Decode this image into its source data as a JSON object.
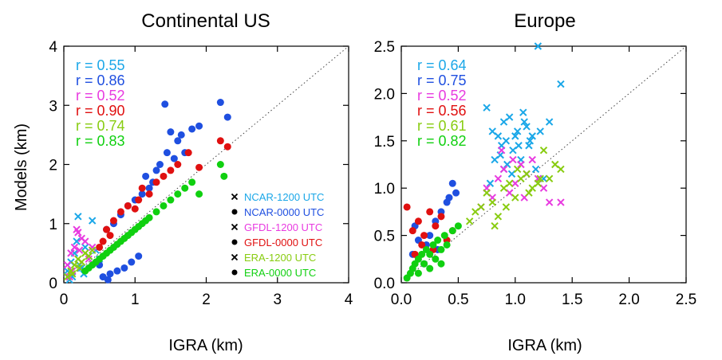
{
  "chart_data": [
    {
      "type": "scatter",
      "title": "Continental US",
      "xlabel": "IGRA (km)",
      "ylabel": "Models (km)",
      "xlim": [
        0,
        4
      ],
      "ylim": [
        0,
        4
      ],
      "xticks": [
        "0",
        "1",
        "2",
        "3",
        "4"
      ],
      "yticks": [
        "0",
        "1",
        "2",
        "3",
        "4"
      ],
      "one_to_one_line": true,
      "legend_position": "bottom-right",
      "correlations": [
        {
          "text": "r = 0.55",
          "color": "#1aa7e8"
        },
        {
          "text": "r = 0.86",
          "color": "#1f4fe0"
        },
        {
          "text": "r = 0.52",
          "color": "#e83ae0"
        },
        {
          "text": "r = 0.90",
          "color": "#e01010"
        },
        {
          "text": "r = 0.74",
          "color": "#88cc10"
        },
        {
          "text": "r = 0.83",
          "color": "#10d010"
        }
      ],
      "legend": [
        {
          "marker": "x",
          "label": "NCAR-1200 UTC",
          "color": "#1aa7e8"
        },
        {
          "marker": "dot",
          "label": "NCAR-0000 UTC",
          "color": "#1f4fe0"
        },
        {
          "marker": "x",
          "label": "GFDL-1200 UTC",
          "color": "#e83ae0"
        },
        {
          "marker": "dot",
          "label": "GFDL-0000 UTC",
          "color": "#e01010"
        },
        {
          "marker": "x",
          "label": "ERA-1200 UTC",
          "color": "#88cc10"
        },
        {
          "marker": "dot",
          "label": "ERA-0000 UTC",
          "color": "#10d010"
        }
      ],
      "series": [
        {
          "name": "NCAR-1200 UTC",
          "marker": "x",
          "color": "#1aa7e8",
          "x": [
            0.05,
            0.1,
            0.15,
            0.2,
            0.25,
            0.3,
            0.18,
            0.12,
            0.22,
            0.35,
            0.4,
            0.45,
            0.5,
            0.08,
            0.28
          ],
          "y": [
            0.2,
            0.35,
            0.5,
            1.12,
            0.25,
            0.6,
            0.7,
            0.1,
            0.3,
            0.45,
            1.05,
            0.55,
            0.4,
            0.05,
            0.15
          ]
        },
        {
          "name": "NCAR-0000 UTC",
          "marker": "dot",
          "color": "#1f4fe0",
          "x": [
            0.6,
            0.7,
            0.8,
            0.9,
            1.0,
            1.1,
            1.15,
            1.2,
            1.25,
            1.3,
            1.35,
            1.42,
            1.5,
            1.55,
            1.6,
            1.7,
            1.8,
            1.9,
            2.2,
            2.3,
            0.55,
            0.65,
            0.75,
            0.85,
            0.95,
            1.05,
            0.5,
            0.62,
            1.45,
            1.65
          ],
          "y": [
            0.9,
            1.0,
            1.15,
            1.3,
            1.4,
            1.5,
            1.8,
            1.6,
            1.7,
            1.9,
            2.0,
            3.02,
            2.55,
            2.1,
            2.4,
            2.2,
            2.6,
            2.65,
            3.05,
            2.8,
            0.1,
            0.15,
            0.2,
            0.25,
            0.35,
            0.45,
            0.3,
            0.05,
            2.2,
            2.5
          ]
        },
        {
          "name": "GFDL-1200 UTC",
          "marker": "x",
          "color": "#e83ae0",
          "x": [
            0.05,
            0.1,
            0.15,
            0.2,
            0.25,
            0.3,
            0.35,
            0.12,
            0.22,
            0.4,
            0.08,
            0.18
          ],
          "y": [
            0.3,
            0.5,
            0.6,
            0.85,
            0.75,
            0.7,
            0.4,
            0.2,
            0.55,
            0.6,
            0.1,
            0.9
          ]
        },
        {
          "name": "GFDL-0000 UTC",
          "marker": "dot",
          "color": "#e01010",
          "x": [
            0.6,
            0.7,
            0.8,
            0.9,
            1.0,
            1.05,
            1.1,
            1.2,
            1.3,
            1.4,
            1.5,
            1.6,
            1.75,
            1.9,
            2.2,
            2.3,
            0.5,
            0.55,
            0.65
          ],
          "y": [
            0.9,
            1.05,
            1.2,
            1.3,
            1.25,
            1.4,
            1.6,
            1.5,
            1.7,
            1.8,
            1.9,
            2.0,
            2.2,
            1.95,
            2.4,
            2.3,
            0.6,
            0.7,
            0.8
          ]
        },
        {
          "name": "ERA-1200 UTC",
          "marker": "x",
          "color": "#88cc10",
          "x": [
            0.05,
            0.1,
            0.15,
            0.2,
            0.25,
            0.3,
            0.35,
            0.4,
            0.12,
            0.22
          ],
          "y": [
            0.1,
            0.2,
            0.3,
            0.4,
            0.35,
            0.5,
            0.45,
            0.55,
            0.15,
            0.25
          ]
        },
        {
          "name": "ERA-0000 UTC",
          "marker": "dot",
          "color": "#10d010",
          "x": [
            0.5,
            0.6,
            0.7,
            0.8,
            0.9,
            1.0,
            1.1,
            1.2,
            1.3,
            1.4,
            1.5,
            1.6,
            1.7,
            1.8,
            1.9,
            2.2,
            2.25,
            0.3,
            0.35,
            0.4,
            0.45,
            0.55,
            0.65,
            0.75,
            0.85,
            0.95,
            1.05,
            1.15
          ],
          "y": [
            0.4,
            0.5,
            0.6,
            0.7,
            0.8,
            0.9,
            1.0,
            1.1,
            1.2,
            1.3,
            1.4,
            1.5,
            1.6,
            1.7,
            1.5,
            2.0,
            1.8,
            0.2,
            0.25,
            0.3,
            0.35,
            0.45,
            0.55,
            0.65,
            0.75,
            0.85,
            0.95,
            1.05
          ]
        }
      ]
    },
    {
      "type": "scatter",
      "title": "Europe",
      "xlabel": "IGRA (km)",
      "ylabel": "",
      "xlim": [
        0,
        2.5
      ],
      "ylim": [
        0,
        2.5
      ],
      "xticks": [
        "0.0",
        "0.5",
        "1.0",
        "1.5",
        "2.0",
        "2.5"
      ],
      "yticks": [
        "0.0",
        "0.5",
        "1.0",
        "1.5",
        "2.0",
        "2.5"
      ],
      "one_to_one_line": true,
      "correlations": [
        {
          "text": "r = 0.64",
          "color": "#1aa7e8"
        },
        {
          "text": "r = 0.75",
          "color": "#1f4fe0"
        },
        {
          "text": "r = 0.52",
          "color": "#e83ae0"
        },
        {
          "text": "r = 0.56",
          "color": "#e01010"
        },
        {
          "text": "r = 0.61",
          "color": "#88cc10"
        },
        {
          "text": "r = 0.82",
          "color": "#10d010"
        }
      ],
      "series": [
        {
          "name": "NCAR-1200 UTC",
          "marker": "x",
          "color": "#1aa7e8",
          "x": [
            0.75,
            0.8,
            0.85,
            0.88,
            0.9,
            0.92,
            0.95,
            0.98,
            1.0,
            1.02,
            1.05,
            1.08,
            1.1,
            1.12,
            1.15,
            1.18,
            1.2,
            1.25,
            1.3,
            1.4,
            0.82,
            0.87,
            0.93,
            0.97,
            1.03,
            1.07,
            0.78,
            0.9,
            1.13,
            1.22
          ],
          "y": [
            1.85,
            1.6,
            1.55,
            1.45,
            1.7,
            1.5,
            1.75,
            1.4,
            1.55,
            1.6,
            1.3,
            1.7,
            1.65,
            1.45,
            1.55,
            1.2,
            2.5,
            1.1,
            1.7,
            2.1,
            1.3,
            1.35,
            1.25,
            1.15,
            1.45,
            1.8,
            1.05,
            1.2,
            1.5,
            1.6
          ]
        },
        {
          "name": "NCAR-0000 UTC",
          "marker": "dot",
          "color": "#1f4fe0",
          "x": [
            0.1,
            0.15,
            0.2,
            0.25,
            0.3,
            0.35,
            0.4,
            0.45,
            0.12,
            0.22,
            0.32,
            0.42,
            0.48
          ],
          "y": [
            0.3,
            0.45,
            0.2,
            0.5,
            0.65,
            0.75,
            0.85,
            1.05,
            0.6,
            0.4,
            0.35,
            0.9,
            0.95
          ]
        },
        {
          "name": "GFDL-1200 UTC",
          "marker": "x",
          "color": "#e83ae0",
          "x": [
            0.7,
            0.8,
            0.85,
            0.9,
            0.95,
            1.0,
            1.05,
            1.1,
            1.15,
            1.2,
            1.25,
            1.3,
            1.4,
            0.75,
            0.88,
            0.98,
            1.08
          ],
          "y": [
            0.8,
            0.9,
            1.1,
            1.2,
            0.95,
            1.05,
            1.25,
            1.15,
            1.3,
            1.1,
            1.0,
            0.85,
            0.85,
            1.0,
            1.4,
            1.3,
            0.9
          ]
        },
        {
          "name": "GFDL-0000 UTC",
          "marker": "dot",
          "color": "#e01010",
          "x": [
            0.05,
            0.1,
            0.12,
            0.15,
            0.2,
            0.25,
            0.3,
            0.35,
            0.4,
            0.45,
            0.18,
            0.28
          ],
          "y": [
            0.8,
            0.55,
            0.3,
            0.65,
            0.5,
            0.75,
            0.6,
            0.7,
            0.45,
            0.55,
            0.4,
            0.35
          ]
        },
        {
          "name": "ERA-1200 UTC",
          "marker": "x",
          "color": "#88cc10",
          "x": [
            0.6,
            0.7,
            0.75,
            0.8,
            0.85,
            0.9,
            0.95,
            1.0,
            1.05,
            1.1,
            1.15,
            1.2,
            1.25,
            1.3,
            1.35,
            1.4,
            0.65,
            0.82,
            0.92,
            1.02,
            1.12,
            1.22
          ],
          "y": [
            0.65,
            0.8,
            0.95,
            0.85,
            0.7,
            1.0,
            1.05,
            0.9,
            1.1,
            1.15,
            1.0,
            1.05,
            1.4,
            1.1,
            1.25,
            1.2,
            0.75,
            0.6,
            0.8,
            1.2,
            0.95,
            1.1
          ]
        },
        {
          "name": "ERA-0000 UTC",
          "marker": "dot",
          "color": "#10d010",
          "x": [
            0.05,
            0.08,
            0.1,
            0.12,
            0.15,
            0.18,
            0.2,
            0.22,
            0.25,
            0.28,
            0.3,
            0.32,
            0.35,
            0.38,
            0.4,
            0.45,
            0.5,
            0.15,
            0.25,
            0.35
          ],
          "y": [
            0.05,
            0.1,
            0.15,
            0.2,
            0.25,
            0.3,
            0.2,
            0.35,
            0.3,
            0.4,
            0.25,
            0.45,
            0.35,
            0.5,
            0.4,
            0.55,
            0.6,
            0.1,
            0.15,
            0.2
          ]
        }
      ]
    }
  ]
}
